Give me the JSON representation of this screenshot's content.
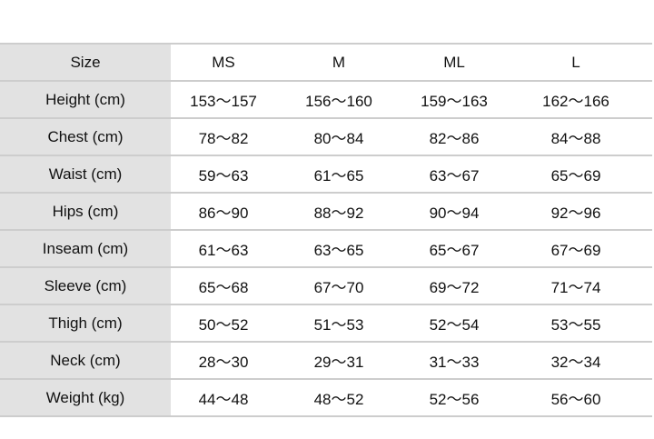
{
  "header": {
    "label": "Size",
    "sizes": [
      "MS",
      "M",
      "ML",
      "L"
    ]
  },
  "rows": [
    {
      "label": "Height (cm)",
      "values": [
        "153～157",
        "156～160",
        "159～163",
        "162～166"
      ]
    },
    {
      "label": "Chest (cm)",
      "values": [
        "78～82",
        "80～84",
        "82～86",
        "84～88"
      ]
    },
    {
      "label": "Waist (cm)",
      "values": [
        "59～63",
        "61～65",
        "63～67",
        "65～69"
      ]
    },
    {
      "label": "Hips (cm)",
      "values": [
        "86～90",
        "88～92",
        "90～94",
        "92～96"
      ]
    },
    {
      "label": "Inseam (cm)",
      "values": [
        "61～63",
        "63～65",
        "65～67",
        "67～69"
      ]
    },
    {
      "label": "Sleeve (cm)",
      "values": [
        "65～68",
        "67～70",
        "69～72",
        "71～74"
      ]
    },
    {
      "label": "Thigh (cm)",
      "values": [
        "50～52",
        "51～53",
        "52～54",
        "53～55"
      ]
    },
    {
      "label": "Neck (cm)",
      "values": [
        "28～30",
        "29～31",
        "31～33",
        "32～34"
      ]
    },
    {
      "label": "Weight (kg)",
      "values": [
        "44～48",
        "48～52",
        "52～56",
        "56～60"
      ]
    }
  ]
}
